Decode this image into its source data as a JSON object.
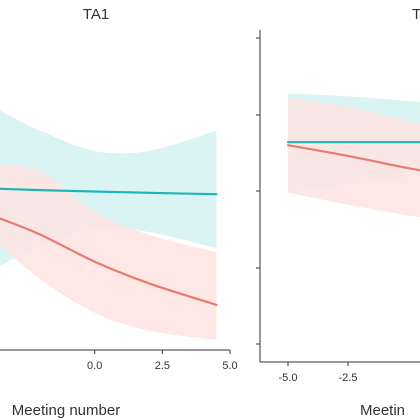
{
  "chart_data": [
    {
      "type": "line",
      "title": "TA1",
      "xlabel": "Meeting number",
      "ylabel": "",
      "xlim": [
        -3.5,
        5.0
      ],
      "ylim": [
        -1.0,
        1.0
      ],
      "xticks": [
        "0.0",
        "2.5",
        "5.0"
      ],
      "grid": false,
      "series": [
        {
          "color": "#1fb5b5",
          "band_color": "#d3f2f2",
          "x": [
            -3.5,
            -2.0,
            0.0,
            2.0,
            4.5
          ],
          "y": [
            0.12,
            0.11,
            0.1,
            0.09,
            0.08
          ],
          "lower": [
            -0.45,
            -0.3,
            -0.18,
            -0.2,
            -0.32
          ],
          "upper": [
            0.7,
            0.55,
            0.4,
            0.4,
            0.55
          ]
        },
        {
          "color": "#e87a6e",
          "band_color": "#fde4e2",
          "x": [
            -3.5,
            -2.0,
            0.0,
            2.0,
            4.5
          ],
          "y": [
            -0.1,
            -0.22,
            -0.42,
            -0.58,
            -0.74
          ],
          "lower": [
            -0.3,
            -0.55,
            -0.8,
            -0.93,
            -1.0
          ],
          "upper": [
            0.3,
            0.25,
            -0.05,
            -0.22,
            -0.35
          ]
        }
      ]
    },
    {
      "type": "line",
      "title": "T",
      "xlabel": "Meetin",
      "ylabel": "",
      "xlim": [
        -5.5,
        1.5
      ],
      "ylim": [
        -1.0,
        1.0
      ],
      "xticks": [
        "-5.0",
        "-2.5"
      ],
      "grid": false,
      "series": [
        {
          "color": "#1fb5b5",
          "band_color": "#d3f2f2",
          "x": [
            -5.0,
            -2.5,
            0.0,
            1.5
          ],
          "y": [
            0.33,
            0.33,
            0.33,
            0.33
          ],
          "lower": [
            0.0,
            0.05,
            0.1,
            0.12
          ],
          "upper": [
            0.65,
            0.63,
            0.6,
            0.58
          ]
        },
        {
          "color": "#e87a6e",
          "band_color": "#fde4e2",
          "x": [
            -5.0,
            -2.5,
            0.0,
            1.5
          ],
          "y": [
            0.31,
            0.24,
            0.16,
            0.12
          ],
          "lower": [
            0.0,
            -0.08,
            -0.15,
            -0.18
          ],
          "upper": [
            0.62,
            0.56,
            0.47,
            0.42
          ]
        }
      ]
    }
  ]
}
